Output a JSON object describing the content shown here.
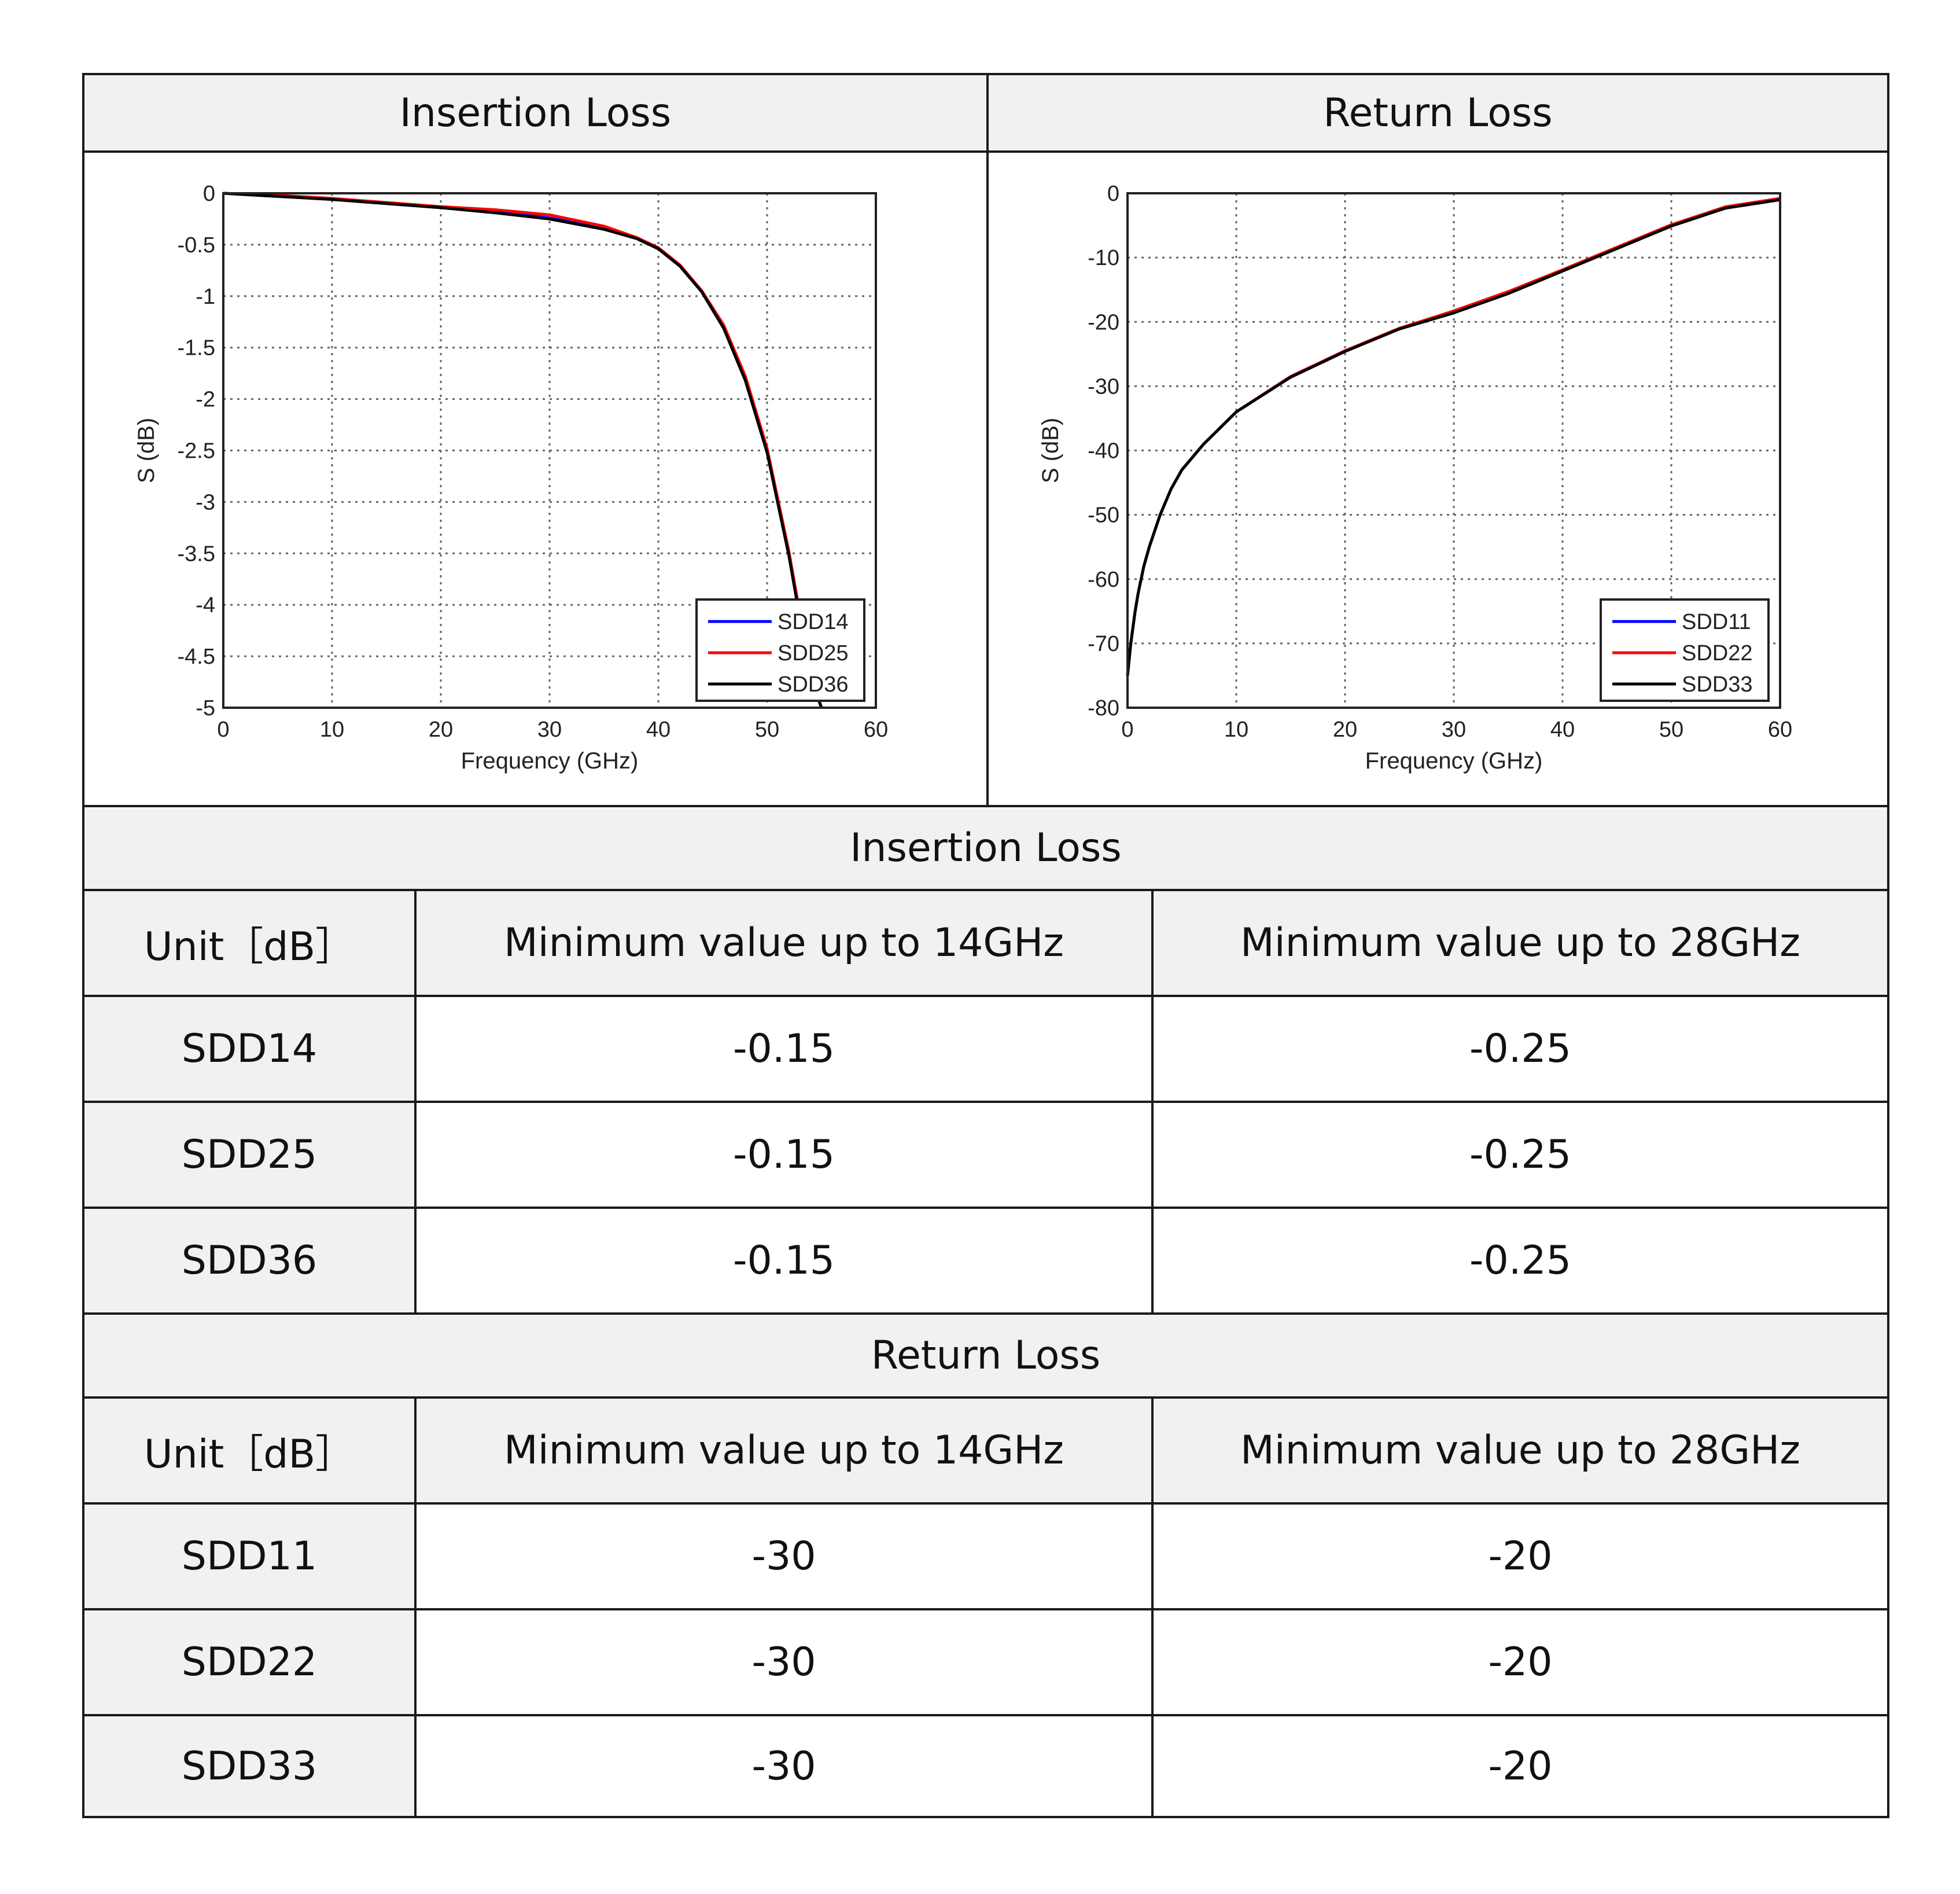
{
  "header": {
    "left_title": "Insertion Loss",
    "right_title": "Return Loss"
  },
  "chart_data": [
    {
      "type": "line",
      "title": "",
      "xlabel": "Frequency (GHz)",
      "ylabel": "S (dB)",
      "xlim": [
        0,
        60
      ],
      "ylim": [
        -5,
        0
      ],
      "xticks": [
        "0",
        "10",
        "20",
        "30",
        "40",
        "50",
        "60"
      ],
      "yticks": [
        "0",
        "-0.5",
        "-1",
        "-1.5",
        "-2",
        "-2.5",
        "-3",
        "-3.5",
        "-4",
        "-4.5",
        "-5"
      ],
      "grid": true,
      "legend_position": "bottom-right",
      "series": [
        {
          "name": "SDD14",
          "color": "#0000ff",
          "x": [
            0,
            5,
            10,
            15,
            20,
            25,
            30,
            35,
            38,
            40,
            42,
            44,
            46,
            48,
            50,
            51,
            52,
            53,
            54,
            55
          ],
          "y": [
            0,
            -0.03,
            -0.06,
            -0.1,
            -0.14,
            -0.18,
            -0.24,
            -0.34,
            -0.43,
            -0.53,
            -0.7,
            -0.95,
            -1.3,
            -1.8,
            -2.5,
            -3.0,
            -3.5,
            -4.1,
            -4.7,
            -5.0
          ]
        },
        {
          "name": "SDD25",
          "color": "#ff0000",
          "x": [
            0,
            5,
            10,
            15,
            20,
            25,
            30,
            35,
            38,
            40,
            42,
            44,
            46,
            48,
            50,
            51,
            52,
            53,
            54,
            55
          ],
          "y": [
            0,
            -0.02,
            -0.05,
            -0.09,
            -0.13,
            -0.16,
            -0.21,
            -0.32,
            -0.43,
            -0.53,
            -0.7,
            -0.95,
            -1.28,
            -1.78,
            -2.48,
            -2.98,
            -3.48,
            -4.08,
            -4.68,
            -5.0
          ]
        },
        {
          "name": "SDD36",
          "color": "#000000",
          "x": [
            0,
            5,
            10,
            15,
            20,
            25,
            30,
            35,
            38,
            40,
            42,
            44,
            46,
            48,
            50,
            51,
            52,
            53,
            54,
            55
          ],
          "y": [
            0,
            -0.03,
            -0.06,
            -0.1,
            -0.14,
            -0.19,
            -0.25,
            -0.35,
            -0.44,
            -0.54,
            -0.71,
            -0.96,
            -1.31,
            -1.82,
            -2.52,
            -3.02,
            -3.52,
            -4.12,
            -4.72,
            -5.0
          ]
        }
      ]
    },
    {
      "type": "line",
      "title": "",
      "xlabel": "Frequency (GHz)",
      "ylabel": "S (dB)",
      "xlim": [
        0,
        60
      ],
      "ylim": [
        -80,
        0
      ],
      "xticks": [
        "0",
        "10",
        "20",
        "30",
        "40",
        "50",
        "60"
      ],
      "yticks": [
        "0",
        "-10",
        "-20",
        "-30",
        "-40",
        "-50",
        "-60",
        "-70",
        "-80"
      ],
      "grid": true,
      "legend_position": "bottom-right",
      "series": [
        {
          "name": "SDD11",
          "color": "#0000ff",
          "x": [
            0,
            0.3,
            0.7,
            1,
            1.5,
            2,
            3,
            4,
            5,
            7,
            10,
            15,
            20,
            25,
            30,
            35,
            40,
            45,
            50,
            55,
            60
          ],
          "y": [
            -75,
            -70,
            -65,
            -62,
            -58,
            -55,
            -50,
            -46,
            -43,
            -39,
            -34,
            -28.5,
            -24.5,
            -21,
            -18.5,
            -15.5,
            -12,
            -8.5,
            -5,
            -2.3,
            -1
          ]
        },
        {
          "name": "SDD22",
          "color": "#ff0000",
          "x": [
            0,
            0.3,
            0.7,
            1,
            1.5,
            2,
            3,
            4,
            5,
            7,
            10,
            15,
            20,
            25,
            30,
            35,
            40,
            45,
            50,
            55,
            60
          ],
          "y": [
            -75,
            -70,
            -65,
            -62,
            -58,
            -55,
            -50,
            -46,
            -43,
            -39,
            -34,
            -28.5,
            -24.5,
            -21,
            -18.3,
            -15.3,
            -11.9,
            -8.4,
            -4.9,
            -2.1,
            -0.8
          ]
        },
        {
          "name": "SDD33",
          "color": "#000000",
          "x": [
            0,
            0.3,
            0.7,
            1,
            1.5,
            2,
            3,
            4,
            5,
            7,
            10,
            15,
            20,
            25,
            30,
            35,
            40,
            45,
            50,
            55,
            60
          ],
          "y": [
            -75,
            -70,
            -65,
            -62,
            -58,
            -55,
            -50,
            -46,
            -43,
            -39,
            -34,
            -28.6,
            -24.6,
            -21.1,
            -18.6,
            -15.6,
            -12.1,
            -8.6,
            -5.1,
            -2.3,
            -1
          ]
        }
      ]
    }
  ],
  "insertion_table": {
    "title": "Insertion Loss",
    "headers": [
      "Unit［dB］",
      "Minimum value up to 14GHz",
      "Minimum value up to 28GHz"
    ],
    "rows": [
      [
        "SDD14",
        "-0.15",
        "-0.25"
      ],
      [
        "SDD25",
        "-0.15",
        "-0.25"
      ],
      [
        "SDD36",
        "-0.15",
        "-0.25"
      ]
    ]
  },
  "return_table": {
    "title": "Return Loss",
    "headers": [
      "Unit［dB］",
      "Minimum value up to 14GHz",
      "Minimum value up to 28GHz"
    ],
    "rows": [
      [
        "SDD11",
        "-30",
        "-20"
      ],
      [
        "SDD22",
        "-30",
        "-20"
      ],
      [
        "SDD33",
        "-30",
        "-20"
      ]
    ]
  }
}
